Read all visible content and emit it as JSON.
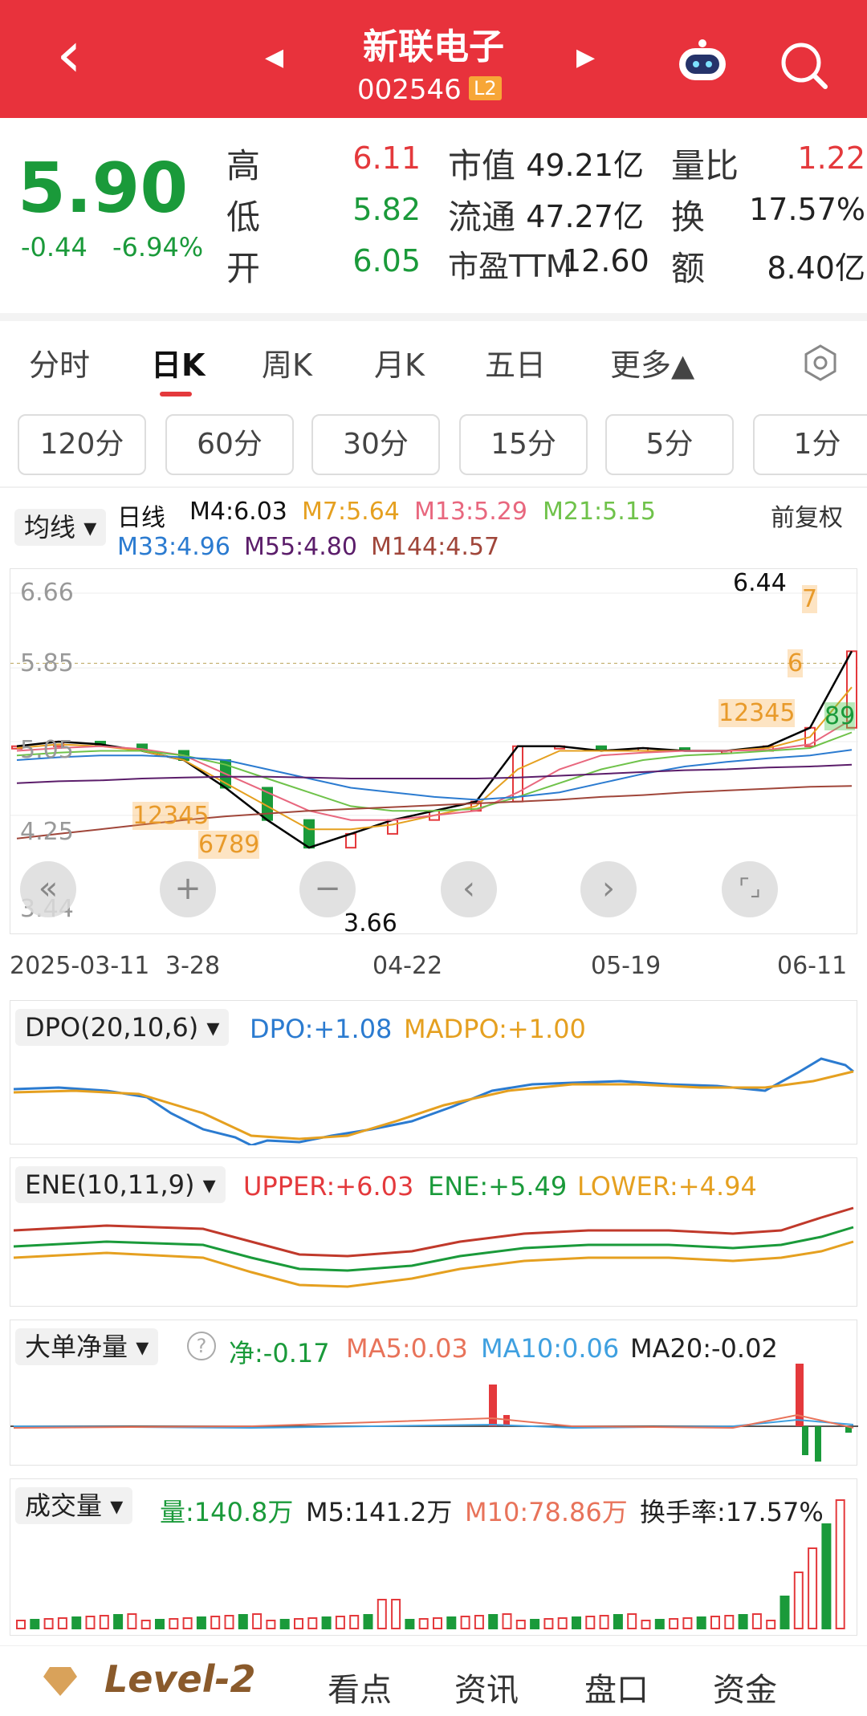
{
  "header": {
    "title": "新联电子",
    "code": "002546",
    "badge": "L2",
    "back": "‹",
    "prev": "◀",
    "next": "▶"
  },
  "quote": {
    "price": "5.90",
    "change": "-0.44",
    "pct": "-6.94%",
    "high_label": "高",
    "high": "6.11",
    "low_label": "低",
    "low": "5.82",
    "open_label": "开",
    "open": "6.05",
    "mktcap_label": "市值",
    "mktcap": "49.21亿",
    "float_label": "流通",
    "float": "47.27亿",
    "pe_label": "市盈TTM",
    "pe": "12.60",
    "volratio_label": "量比",
    "volratio": "1.22",
    "turnover_label": "换",
    "turnover": "17.57%",
    "amount_label": "额",
    "amount": "8.40亿"
  },
  "tabs": [
    "分时",
    "日K",
    "周K",
    "月K",
    "五日",
    "更多▲"
  ],
  "periods": [
    "120分",
    "60分",
    "30分",
    "15分",
    "5分",
    "1分"
  ],
  "ma_legend": {
    "selector": "均线",
    "period": "日线",
    "m4": "M4:6.03",
    "m7": "M7:5.64",
    "m13": "M13:5.29",
    "m21": "M21:5.15",
    "m33": "M33:4.96",
    "m55": "M55:4.80",
    "m144": "M144:4.57",
    "adjust": "前复权"
  },
  "kline": {
    "y_labels": [
      "6.66",
      "5.85",
      "5.05",
      "4.25",
      "3.44"
    ],
    "high_mark": "6.44",
    "low_mark": "3.66",
    "x_labels": [
      "2025-03-11",
      "3-28",
      "04-22",
      "05-19",
      "06-11"
    ],
    "seq_a": "12345",
    "seq_b": "6789",
    "seq_c": "12345",
    "seq_d": "6",
    "seq_e": "7",
    "seq_f": "89"
  },
  "controls": [
    "«",
    "+",
    "−",
    "‹",
    "›",
    "⌜⌟"
  ],
  "dpo": {
    "selector": "DPO(20,10,6)",
    "dpo": "DPO:+1.08",
    "madpo": "MADPO:+1.00"
  },
  "ene": {
    "selector": "ENE(10,11,9)",
    "upper": "UPPER:+6.03",
    "ene": "ENE:+5.49",
    "lower": "LOWER:+4.94"
  },
  "bigorder": {
    "selector": "大单净量",
    "net": "净:-0.17",
    "ma5": "MA5:0.03",
    "ma10": "MA10:0.06",
    "ma20": "MA20:-0.02"
  },
  "volume": {
    "selector": "成交量",
    "vol": "量:140.8万",
    "m5": "M5:141.2万",
    "m10": "M10:78.86万",
    "turnover": "换手率:17.57%"
  },
  "bottom": {
    "level": "Level-2",
    "tabs": [
      "看点",
      "资讯",
      "盘口",
      "资金"
    ]
  },
  "colors": {
    "red": "#e4393c",
    "green": "#1a9a3a",
    "ma4": "#000000",
    "ma7": "#e5a020",
    "ma13": "#e8677e",
    "ma21": "#6fc24a",
    "ma33": "#2b7bd0",
    "ma55": "#5b1d6a",
    "ma144": "#a0463a"
  },
  "chart_data": {
    "type": "line",
    "title": "新联电子 日K",
    "y_range": [
      3.44,
      6.66
    ],
    "x_labels": [
      "2025-03-11",
      "3-28",
      "04-22",
      "05-19",
      "06-11"
    ],
    "series": [
      {
        "name": "M4",
        "values": [
          5.0,
          5.05,
          5.02,
          4.95,
          4.85,
          4.55,
          4.2,
          3.9,
          4.05,
          4.2,
          4.3,
          4.4,
          5.0,
          5.0,
          4.95,
          4.98,
          4.95,
          4.95,
          5.0,
          5.2,
          6.03
        ]
      },
      {
        "name": "M7",
        "values": [
          4.98,
          5.02,
          5.0,
          4.95,
          4.85,
          4.6,
          4.35,
          4.1,
          4.1,
          4.15,
          4.25,
          4.35,
          4.75,
          4.95,
          4.95,
          4.95,
          4.95,
          4.95,
          4.98,
          5.1,
          5.64
        ]
      },
      {
        "name": "M13",
        "values": [
          4.95,
          4.98,
          5.0,
          4.97,
          4.9,
          4.7,
          4.5,
          4.3,
          4.2,
          4.2,
          4.25,
          4.3,
          4.5,
          4.75,
          4.9,
          4.93,
          4.95,
          4.95,
          4.96,
          5.02,
          5.29
        ]
      },
      {
        "name": "M21",
        "values": [
          4.9,
          4.93,
          4.95,
          4.95,
          4.9,
          4.8,
          4.65,
          4.5,
          4.35,
          4.3,
          4.3,
          4.32,
          4.45,
          4.6,
          4.75,
          4.85,
          4.9,
          4.92,
          4.95,
          4.98,
          5.15
        ]
      },
      {
        "name": "M33",
        "values": [
          4.85,
          4.88,
          4.9,
          4.9,
          4.88,
          4.85,
          4.75,
          4.65,
          4.55,
          4.5,
          4.45,
          4.42,
          4.45,
          4.5,
          4.6,
          4.7,
          4.78,
          4.83,
          4.87,
          4.9,
          4.96
        ]
      },
      {
        "name": "M55",
        "values": [
          4.6,
          4.62,
          4.63,
          4.65,
          4.66,
          4.67,
          4.67,
          4.66,
          4.65,
          4.65,
          4.65,
          4.65,
          4.66,
          4.68,
          4.7,
          4.72,
          4.74,
          4.75,
          4.77,
          4.78,
          4.8
        ]
      },
      {
        "name": "M144",
        "values": [
          4.0,
          4.05,
          4.1,
          4.15,
          4.2,
          4.24,
          4.27,
          4.3,
          4.32,
          4.34,
          4.36,
          4.38,
          4.4,
          4.42,
          4.45,
          4.47,
          4.5,
          4.52,
          4.54,
          4.56,
          4.57
        ]
      }
    ]
  }
}
